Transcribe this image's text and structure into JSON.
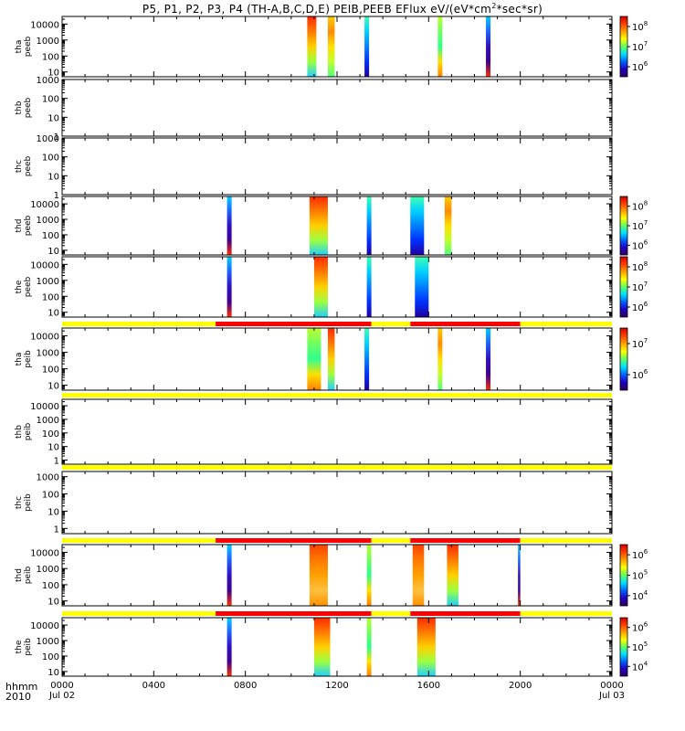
{
  "title": {
    "prefix": "P5, P1, P2, P3, P4 (TH-A,B,C,D,E) PEIB,PEEB EFlux eV/(eV*cm",
    "sup": "2",
    "suffix": "*sec*sr)"
  },
  "bottom_axis": {
    "row1_label": "hhmm",
    "row2_label": "2010",
    "ticks": [
      "0000",
      "0400",
      "0800",
      "1200",
      "1600",
      "2000",
      "0000"
    ],
    "date_start": "Jul 02",
    "date_end": "Jul 03"
  },
  "colors": {
    "flag_yellow": "#ffff00",
    "flag_red": "#ff0000"
  },
  "chart_data": {
    "type": "heatmap",
    "x_unit": "hours since 2010-07-02 00:00",
    "x_range": [
      0,
      24
    ],
    "y_scale": "log",
    "panels": [
      {
        "label1": "tha",
        "label2": "peeb",
        "yticks": [
          "10000",
          "1000",
          "100",
          "10"
        ],
        "ylim": [
          5,
          30000
        ],
        "colorbar": {
          "ticks": [
            "10",
            "10",
            "10"
          ],
          "exps": [
            "8",
            "7",
            "6"
          ]
        },
        "blocks": [
          {
            "t0": 10.7,
            "t1": 11.1,
            "grad": "hot"
          },
          {
            "t0": 11.6,
            "t1": 11.9,
            "grad": "warm"
          },
          {
            "t0": 13.2,
            "t1": 13.4,
            "grad": "cool"
          },
          {
            "t0": 16.4,
            "t1": 16.6,
            "grad": "mid"
          },
          {
            "t0": 18.5,
            "t1": 18.7,
            "grad": "cold"
          }
        ]
      },
      {
        "label1": "thb",
        "label2": "peeb",
        "yticks": [
          "1000",
          "100",
          "10",
          "1"
        ],
        "ylim": [
          1,
          1000
        ],
        "colorbar": null,
        "blocks": []
      },
      {
        "label1": "thc",
        "label2": "peeb",
        "yticks": [
          "1000",
          "100",
          "10",
          "1"
        ],
        "ylim": [
          1,
          1000
        ],
        "colorbar": null,
        "blocks": []
      },
      {
        "label1": "thd",
        "label2": "peeb",
        "yticks": [
          "10000",
          "1000",
          "100",
          "10"
        ],
        "ylim": [
          5,
          30000
        ],
        "colorbar": {
          "ticks": [
            "10",
            "10",
            "10"
          ],
          "exps": [
            "8",
            "7",
            "6"
          ]
        },
        "blocks": [
          {
            "t0": 7.2,
            "t1": 7.4,
            "grad": "cold"
          },
          {
            "t0": 10.8,
            "t1": 11.6,
            "grad": "hot"
          },
          {
            "t0": 13.3,
            "t1": 13.5,
            "grad": "cool"
          },
          {
            "t0": 15.2,
            "t1": 15.8,
            "grad": "cool"
          },
          {
            "t0": 16.7,
            "t1": 17.0,
            "grad": "warm"
          }
        ]
      },
      {
        "label1": "the",
        "label2": "peeb",
        "yticks": [
          "10000",
          "1000",
          "100",
          "10"
        ],
        "ylim": [
          5,
          30000
        ],
        "colorbar": {
          "ticks": [
            "10",
            "10",
            "10"
          ],
          "exps": [
            "8",
            "7",
            "6"
          ]
        },
        "blocks": [
          {
            "t0": 7.2,
            "t1": 7.4,
            "grad": "cold"
          },
          {
            "t0": 11.0,
            "t1": 11.6,
            "grad": "hot"
          },
          {
            "t0": 13.3,
            "t1": 13.5,
            "grad": "cool"
          },
          {
            "t0": 15.4,
            "t1": 16.0,
            "grad": "cool"
          }
        ]
      },
      {
        "label1": "tha",
        "label2": "peib",
        "yticks": [
          "10000",
          "1000",
          "100",
          "10"
        ],
        "ylim": [
          5,
          30000
        ],
        "colorbar": {
          "ticks": [
            "10",
            "10"
          ],
          "exps": [
            "7",
            "6"
          ]
        },
        "flags": [
          {
            "t0": 0,
            "t1": 6.7,
            "c": "yellow"
          },
          {
            "t0": 6.7,
            "t1": 13.5,
            "c": "red"
          },
          {
            "t0": 13.5,
            "t1": 15.2,
            "c": "yellow"
          },
          {
            "t0": 15.2,
            "t1": 20.0,
            "c": "red"
          },
          {
            "t0": 20.0,
            "t1": 24,
            "c": "yellow"
          }
        ],
        "blocks": [
          {
            "t0": 10.7,
            "t1": 11.3,
            "grad": "mid"
          },
          {
            "t0": 11.6,
            "t1": 11.9,
            "grad": "hot"
          },
          {
            "t0": 13.2,
            "t1": 13.4,
            "grad": "cool"
          },
          {
            "t0": 16.4,
            "t1": 16.6,
            "grad": "warm"
          },
          {
            "t0": 18.5,
            "t1": 18.7,
            "grad": "cold"
          }
        ]
      },
      {
        "label1": "thb",
        "label2": "peib",
        "yticks": [
          "10000",
          "1000",
          "100",
          "10",
          "1"
        ],
        "ylim": [
          0.5,
          30000
        ],
        "colorbar": null,
        "flags": [
          {
            "t0": 0,
            "t1": 24,
            "c": "yellow"
          }
        ],
        "blocks": []
      },
      {
        "label1": "thc",
        "label2": "peib",
        "yticks": [
          "1000",
          "100",
          "10",
          "1"
        ],
        "ylim": [
          0.5,
          2000
        ],
        "colorbar": null,
        "flags": [
          {
            "t0": 0,
            "t1": 24,
            "c": "yellow"
          }
        ],
        "blocks": []
      },
      {
        "label1": "thd",
        "label2": "peib",
        "yticks": [
          "10000",
          "1000",
          "100",
          "10"
        ],
        "ylim": [
          5,
          30000
        ],
        "colorbar": {
          "ticks": [
            "10",
            "10",
            "10"
          ],
          "exps": [
            "6",
            "5",
            "4"
          ]
        },
        "flags": [
          {
            "t0": 0,
            "t1": 6.7,
            "c": "yellow"
          },
          {
            "t0": 6.7,
            "t1": 13.5,
            "c": "red"
          },
          {
            "t0": 13.5,
            "t1": 15.2,
            "c": "yellow"
          },
          {
            "t0": 15.2,
            "t1": 20.0,
            "c": "red"
          },
          {
            "t0": 20.0,
            "t1": 24,
            "c": "yellow"
          }
        ],
        "blocks": [
          {
            "t0": 7.2,
            "t1": 7.4,
            "grad": "cold"
          },
          {
            "t0": 10.8,
            "t1": 11.6,
            "grad": "orange"
          },
          {
            "t0": 13.3,
            "t1": 13.5,
            "grad": "mid"
          },
          {
            "t0": 15.3,
            "t1": 15.8,
            "grad": "orange"
          },
          {
            "t0": 16.8,
            "t1": 17.3,
            "grad": "hot"
          },
          {
            "t0": 19.9,
            "t1": 20.0,
            "grad": "cold"
          }
        ]
      },
      {
        "label1": "the",
        "label2": "peib",
        "yticks": [
          "10000",
          "1000",
          "100",
          "10"
        ],
        "ylim": [
          5,
          30000
        ],
        "colorbar": {
          "ticks": [
            "10",
            "10",
            "10"
          ],
          "exps": [
            "6",
            "5",
            "4"
          ]
        },
        "flags": [
          {
            "t0": 0,
            "t1": 6.7,
            "c": "yellow"
          },
          {
            "t0": 6.7,
            "t1": 13.5,
            "c": "red"
          },
          {
            "t0": 13.5,
            "t1": 15.2,
            "c": "yellow"
          },
          {
            "t0": 15.2,
            "t1": 20.0,
            "c": "red"
          },
          {
            "t0": 20.0,
            "t1": 24,
            "c": "yellow"
          }
        ],
        "blocks": [
          {
            "t0": 7.2,
            "t1": 7.4,
            "grad": "cold"
          },
          {
            "t0": 11.0,
            "t1": 11.7,
            "grad": "hot"
          },
          {
            "t0": 13.3,
            "t1": 13.5,
            "grad": "mid"
          },
          {
            "t0": 15.5,
            "t1": 16.3,
            "grad": "hot"
          }
        ]
      }
    ]
  }
}
